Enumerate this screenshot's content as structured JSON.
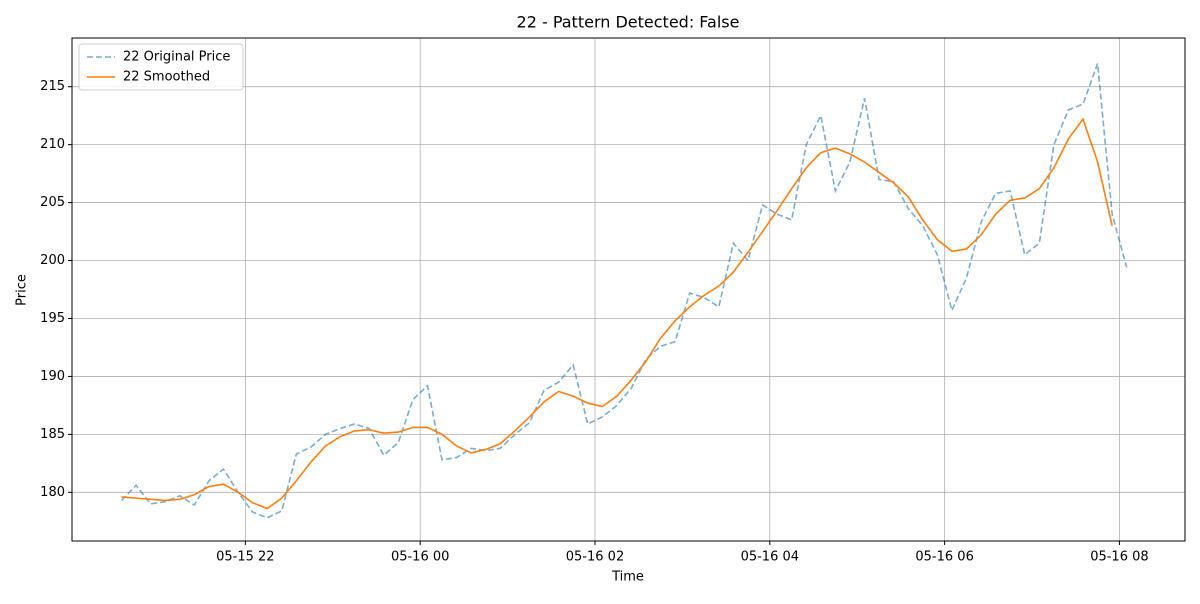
{
  "chart_data": {
    "type": "line",
    "title": "22 - Pattern Detected: False",
    "x_label": "Time",
    "y_label": "Price",
    "x": [
      "05-15 20:35",
      "05-15 20:45",
      "05-15 20:55",
      "05-15 21:05",
      "05-15 21:15",
      "05-15 21:25",
      "05-15 21:35",
      "05-15 21:45",
      "05-15 21:55",
      "05-15 22:05",
      "05-15 22:15",
      "05-15 22:25",
      "05-15 22:35",
      "05-15 22:45",
      "05-15 22:55",
      "05-15 23:05",
      "05-15 23:15",
      "05-15 23:25",
      "05-15 23:35",
      "05-15 23:45",
      "05-15 23:55",
      "05-16 00:05",
      "05-16 00:15",
      "05-16 00:25",
      "05-16 00:35",
      "05-16 00:45",
      "05-16 00:55",
      "05-16 01:05",
      "05-16 01:15",
      "05-16 01:25",
      "05-16 01:35",
      "05-16 01:45",
      "05-16 01:55",
      "05-16 02:05",
      "05-16 02:15",
      "05-16 02:25",
      "05-16 02:35",
      "05-16 02:45",
      "05-16 02:55",
      "05-16 03:05",
      "05-16 03:15",
      "05-16 03:25",
      "05-16 03:35",
      "05-16 03:45",
      "05-16 03:55",
      "05-16 04:05",
      "05-16 04:15",
      "05-16 04:25",
      "05-16 04:35",
      "05-16 04:45",
      "05-16 04:55",
      "05-16 05:05",
      "05-16 05:15",
      "05-16 05:25",
      "05-16 05:35",
      "05-16 05:45",
      "05-16 05:55",
      "05-16 06:05",
      "05-16 06:15",
      "05-16 06:25",
      "05-16 06:35",
      "05-16 06:45",
      "05-16 06:55",
      "05-16 07:05",
      "05-16 07:15",
      "05-16 07:25",
      "05-16 07:35",
      "05-16 07:45",
      "05-16 07:55",
      "05-16 08:05"
    ],
    "series": [
      {
        "name": "22 Original Price",
        "color": "#1f77b4",
        "dashed": true,
        "values": [
          179.3,
          180.6,
          179.0,
          179.2,
          179.7,
          178.9,
          181.0,
          182.0,
          180.0,
          178.3,
          177.8,
          178.4,
          183.3,
          183.9,
          185.0,
          185.5,
          185.9,
          185.5,
          183.2,
          184.3,
          188.0,
          189.2,
          182.8,
          183.0,
          183.8,
          183.6,
          183.8,
          185.0,
          186.0,
          188.8,
          189.5,
          191.0,
          185.9,
          186.5,
          187.5,
          189.0,
          191.5,
          192.6,
          193.0,
          197.2,
          196.8,
          196.0,
          201.5,
          200.0,
          204.8,
          204.0,
          203.5,
          210.0,
          212.5,
          206.0,
          208.5,
          214.0,
          207.0,
          206.8,
          204.5,
          203.0,
          200.5,
          195.7,
          198.5,
          203.3,
          205.8,
          206.0,
          200.5,
          201.5,
          210.0,
          213.0,
          213.5,
          217.0,
          204.0,
          199.4
        ]
      },
      {
        "name": "22 Smoothed",
        "color": "#ff7f0e",
        "dashed": false,
        "values": [
          179.6,
          179.5,
          179.4,
          179.3,
          179.4,
          179.8,
          180.5,
          180.7,
          180.0,
          179.1,
          178.6,
          179.5,
          181.0,
          182.6,
          184.0,
          184.8,
          185.3,
          185.4,
          185.1,
          185.2,
          185.6,
          185.6,
          185.0,
          184.0,
          183.4,
          183.7,
          184.2,
          185.3,
          186.5,
          187.8,
          188.7,
          188.3,
          187.7,
          187.4,
          188.3,
          189.7,
          191.3,
          193.3,
          194.8,
          196.0,
          197.0,
          197.8,
          199.0,
          200.7,
          202.5,
          204.3,
          206.2,
          208.0,
          209.3,
          209.7,
          209.2,
          208.5,
          207.6,
          206.7,
          205.5,
          203.5,
          201.8,
          200.8,
          201.0,
          202.2,
          204.0,
          205.2,
          205.4,
          206.2,
          208.0,
          210.5,
          212.2,
          208.5,
          203.0,
          null
        ]
      }
    ],
    "xlim": [
      "05-15 20:01",
      "05-16 08:45"
    ],
    "xticks": [
      {
        "value": "05-15 22:00",
        "label": "05-15 22"
      },
      {
        "value": "05-16 00:00",
        "label": "05-16 00"
      },
      {
        "value": "05-16 02:00",
        "label": "05-16 02"
      },
      {
        "value": "05-16 04:00",
        "label": "05-16 04"
      },
      {
        "value": "05-16 06:00",
        "label": "05-16 06"
      },
      {
        "value": "05-16 08:00",
        "label": "05-16 08"
      }
    ],
    "ylim": [
      175.8,
      219.2
    ],
    "yticks": [
      180,
      185,
      190,
      195,
      200,
      205,
      210,
      215
    ],
    "grid": true,
    "legend": "upper left"
  }
}
